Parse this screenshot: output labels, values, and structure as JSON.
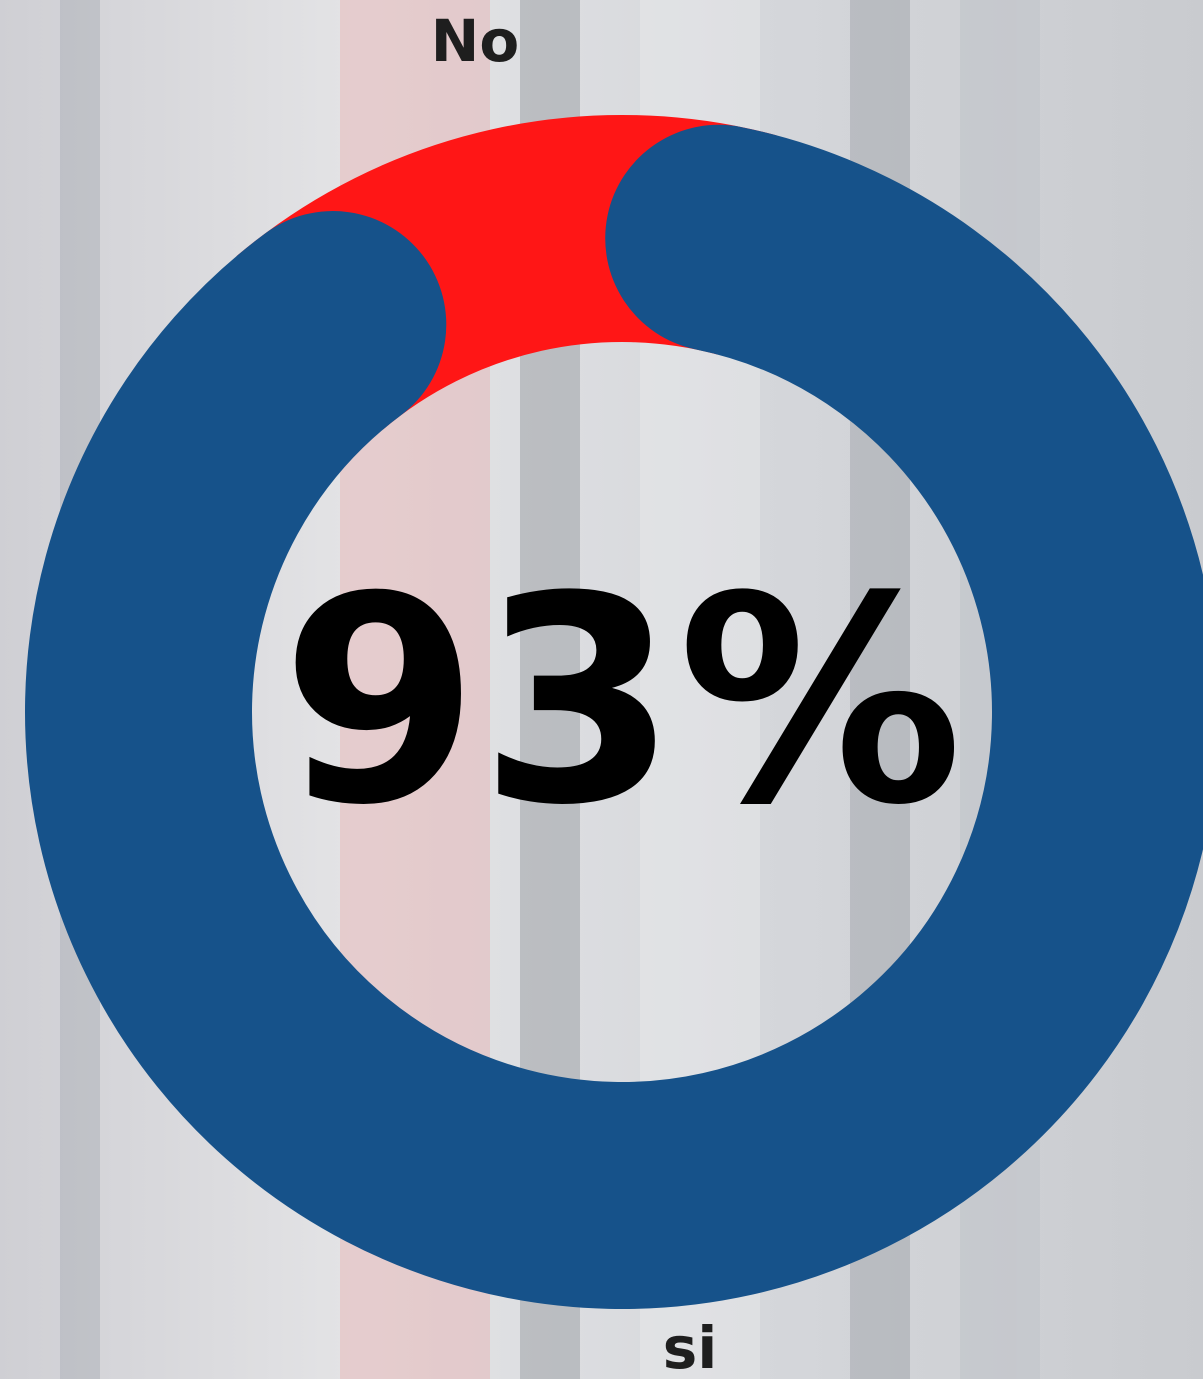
{
  "chart_data": {
    "type": "donut",
    "categories": [
      "No",
      "si"
    ],
    "values": [
      7,
      93
    ],
    "colors": [
      "#ff1616",
      "#16528a"
    ],
    "center_label": "93%"
  }
}
